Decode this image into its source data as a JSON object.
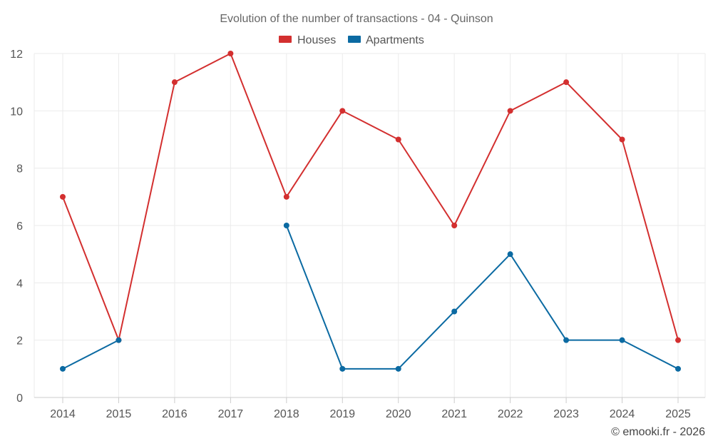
{
  "chart_data": {
    "type": "line",
    "title": "Evolution of the number of transactions - 04 - Quinson",
    "categories": [
      "2014",
      "2015",
      "2016",
      "2017",
      "2018",
      "2019",
      "2020",
      "2021",
      "2022",
      "2023",
      "2024",
      "2025"
    ],
    "series": [
      {
        "name": "Houses",
        "color": "#d32f2f",
        "values": [
          7,
          2,
          11,
          12,
          7,
          10,
          9,
          6,
          10,
          11,
          9,
          2
        ]
      },
      {
        "name": "Apartments",
        "color": "#0b6aa2",
        "values": [
          1,
          2,
          null,
          null,
          6,
          1,
          1,
          3,
          5,
          2,
          2,
          1
        ]
      }
    ],
    "ylim": [
      0,
      12
    ],
    "yticks": [
      0,
      2,
      4,
      6,
      8,
      10,
      12
    ],
    "xlabel": "",
    "ylabel": "",
    "grid": true,
    "legend_position": "top-center"
  },
  "credit": "© emooki.fr - 2026"
}
